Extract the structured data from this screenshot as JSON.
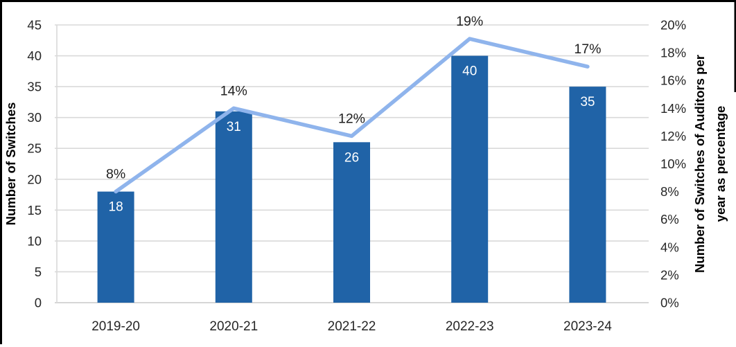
{
  "chart_data": {
    "type": "bar",
    "subtype": "bar-line-combo",
    "title": "",
    "categories": [
      "2019-20",
      "2020-21",
      "2021-22",
      "2022-23",
      "2023-24"
    ],
    "series": [
      {
        "name": "Number of Switches",
        "type": "bar",
        "axis": "left",
        "values": [
          18,
          31,
          26,
          40,
          35
        ],
        "data_labels": [
          "18",
          "31",
          "26",
          "40",
          "35"
        ],
        "color": "#2063A7",
        "label_color": "#FFFFFF"
      },
      {
        "name": "Switches of Auditors per year as percentage",
        "type": "line",
        "axis": "right",
        "values": [
          8,
          14,
          12,
          19,
          17
        ],
        "data_labels": [
          "8%",
          "14%",
          "12%",
          "19%",
          "17%"
        ],
        "color": "#8FB4EC",
        "label_color": "#1F1F1F"
      }
    ],
    "left_axis": {
      "title": "Number of Switches",
      "min": 0,
      "max": 45,
      "step": 5,
      "ticks": [
        "0",
        "5",
        "10",
        "15",
        "20",
        "25",
        "30",
        "35",
        "40",
        "45"
      ]
    },
    "right_axis": {
      "title_lines": [
        "Number  of Switches of Auditors per",
        "year as percentage"
      ],
      "min": 0,
      "max": 20,
      "step": 2,
      "ticks": [
        "0%",
        "2%",
        "4%",
        "6%",
        "8%",
        "10%",
        "12%",
        "14%",
        "16%",
        "18%",
        "20%"
      ]
    },
    "grid": {
      "show": true,
      "color": "#D9D9D9",
      "baseline_color": "#C9C9C9"
    },
    "legend": {
      "show": false
    },
    "colors": {
      "background": "#FFFFFF",
      "tick_text": "#262626",
      "axis_title_text": "#000000",
      "frame_border": "#000000"
    }
  }
}
